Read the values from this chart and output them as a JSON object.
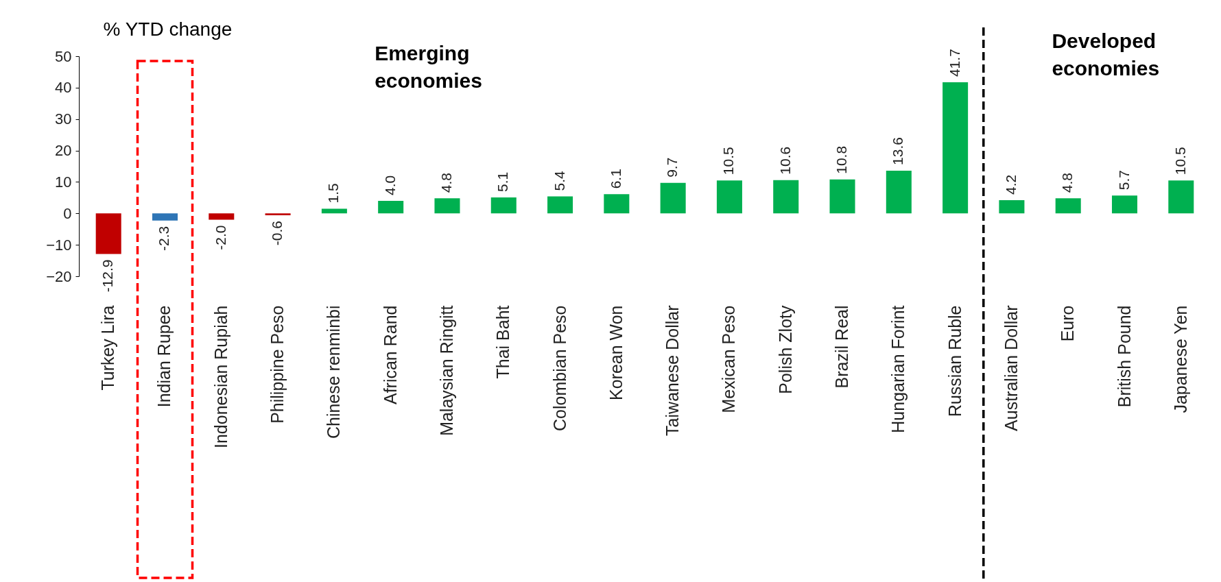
{
  "chart_data": {
    "type": "bar",
    "ylabel": "% YTD change",
    "categories": [
      "Turkey Lira",
      "Indian Rupee",
      "Indonesian Rupiah",
      "Philippine Peso",
      "Chinese renminbi",
      "African Rand",
      "Malaysian Ringitt",
      "Thai Baht",
      "Colombian Peso",
      "Korean Won",
      "Taiwanese Dollar",
      "Mexican Peso",
      "Polish Zloty",
      "Brazil Real",
      "Hungarian Forint",
      "Russian Ruble",
      "Australian Dollar",
      "Euro",
      "British Pound",
      "Japanese Yen"
    ],
    "values": [
      -12.9,
      -2.3,
      -2.0,
      -0.6,
      1.5,
      4.0,
      4.8,
      5.1,
      5.4,
      6.1,
      9.7,
      10.5,
      10.6,
      10.8,
      13.6,
      41.7,
      4.2,
      4.8,
      5.7,
      10.5
    ],
    "value_labels": [
      "-12.9",
      "-2.3",
      "-2.0",
      "-0.6",
      "1.5",
      "4.0",
      "4.8",
      "5.1",
      "5.4",
      "6.1",
      "9.7",
      "10.5",
      "10.6",
      "10.8",
      "13.6",
      "41.7",
      "4.2",
      "4.8",
      "5.7",
      "10.5"
    ],
    "colors": [
      "#c00000",
      "#2e75b6",
      "#c00000",
      "#c00000",
      "#00b050",
      "#00b050",
      "#00b050",
      "#00b050",
      "#00b050",
      "#00b050",
      "#00b050",
      "#00b050",
      "#00b050",
      "#00b050",
      "#00b050",
      "#00b050",
      "#00b050",
      "#00b050",
      "#00b050",
      "#00b050"
    ],
    "ylim": [
      -20,
      50
    ],
    "yticks": [
      -20,
      -10,
      0,
      10,
      20,
      30,
      40,
      50
    ],
    "grid": false,
    "annotations": [
      "Emerging economies",
      "Developed economies"
    ]
  }
}
